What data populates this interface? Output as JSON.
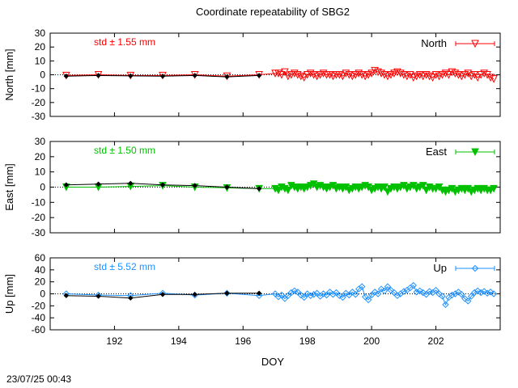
{
  "title": "Coordinate repeatability of SBG2",
  "footer": "23/07/25 00:43",
  "xlabel": "DOY",
  "xlim": [
    190.0,
    204.0
  ],
  "xticks": [
    192,
    194,
    196,
    198,
    200,
    202
  ],
  "colors": {
    "north": "#ff0000",
    "east": "#00c000",
    "up": "#1e90ff",
    "mean": "#000000"
  },
  "chart_data": [
    {
      "type": "line",
      "ylabel": "North [mm]",
      "ylim": [
        -30,
        30
      ],
      "yticks": [
        -30,
        -20,
        -10,
        0,
        10,
        20,
        30
      ],
      "std_label": "std ± 1.55 mm",
      "series": [
        {
          "name": "North",
          "marker": "triangle-down-open",
          "x": [
            190.5,
            191.5,
            192.5,
            193.5,
            194.5,
            195.5,
            196.5,
            197.0,
            197.1,
            197.2,
            197.3,
            197.4,
            197.5,
            197.6,
            197.7,
            197.8,
            197.9,
            198.0,
            198.1,
            198.2,
            198.3,
            198.4,
            198.5,
            198.6,
            198.7,
            198.8,
            198.9,
            199.0,
            199.1,
            199.2,
            199.3,
            199.4,
            199.5,
            199.6,
            199.7,
            199.8,
            199.9,
            200.0,
            200.1,
            200.2,
            200.3,
            200.4,
            200.5,
            200.6,
            200.7,
            200.8,
            200.9,
            201.0,
            201.1,
            201.2,
            201.3,
            201.4,
            201.5,
            201.6,
            201.7,
            201.8,
            201.9,
            202.0,
            202.1,
            202.2,
            202.3,
            202.4,
            202.5,
            202.6,
            202.7,
            202.8,
            202.9,
            203.0,
            203.1,
            203.2,
            203.3,
            203.4,
            203.5,
            203.6,
            203.7,
            203.8
          ],
          "y": [
            -0.5,
            0,
            -0.5,
            -0.5,
            0,
            -1,
            0,
            1,
            1,
            0,
            2,
            -1,
            0,
            1,
            0,
            -1,
            -2,
            0,
            1,
            0,
            -1,
            0,
            1,
            0,
            0,
            -1,
            0,
            0,
            -1,
            1,
            0,
            -1,
            0,
            1,
            0,
            -1,
            0,
            1,
            3,
            2,
            1,
            0,
            -1,
            0,
            1,
            2,
            1,
            0,
            -1,
            0,
            -2,
            -1,
            0,
            -1,
            0,
            -1,
            -2,
            0,
            -1,
            0,
            1,
            0,
            2,
            1,
            0,
            -1,
            0,
            1,
            -1,
            0,
            -2,
            0,
            1,
            0,
            -2,
            -3
          ]
        },
        {
          "name": "",
          "marker": "diamond",
          "x": [
            190.5,
            191.5,
            192.5,
            193.5,
            194.5,
            195.5,
            196.5
          ],
          "y": [
            -1,
            -0.5,
            -0.8,
            -1,
            -0.5,
            -1.5,
            -0.5
          ]
        }
      ]
    },
    {
      "type": "line",
      "ylabel": "East [mm]",
      "ylim": [
        -30,
        30
      ],
      "yticks": [
        -30,
        -20,
        -10,
        0,
        10,
        20,
        30
      ],
      "std_label": "std ± 1.50 mm",
      "series": [
        {
          "name": "East",
          "marker": "triangle-down-filled",
          "x": [
            190.5,
            191.5,
            192.5,
            193.5,
            194.5,
            195.5,
            196.5,
            197.0,
            197.1,
            197.2,
            197.3,
            197.4,
            197.5,
            197.6,
            197.7,
            197.8,
            197.9,
            198.0,
            198.1,
            198.2,
            198.3,
            198.4,
            198.5,
            198.6,
            198.7,
            198.8,
            198.9,
            199.0,
            199.1,
            199.2,
            199.3,
            199.4,
            199.5,
            199.6,
            199.7,
            199.8,
            199.9,
            200.0,
            200.1,
            200.2,
            200.3,
            200.4,
            200.5,
            200.6,
            200.7,
            200.8,
            200.9,
            201.0,
            201.1,
            201.2,
            201.3,
            201.4,
            201.5,
            201.6,
            201.7,
            201.8,
            201.9,
            202.0,
            202.1,
            202.2,
            202.3,
            202.4,
            202.5,
            202.6,
            202.7,
            202.8,
            202.9,
            203.0,
            203.1,
            203.2,
            203.3,
            203.4,
            203.5,
            203.6,
            203.7,
            203.8
          ],
          "y": [
            0,
            0,
            0.5,
            1,
            0,
            -0.5,
            -1,
            -1,
            -2,
            0,
            -1,
            -2,
            1,
            0,
            -1,
            0,
            -1,
            0,
            1,
            2,
            0,
            1,
            0,
            -1,
            0,
            1,
            -1,
            0,
            -1,
            0,
            -2,
            -1,
            0,
            -1,
            0,
            1,
            0,
            -2,
            -1,
            0,
            -1,
            0,
            -3,
            -1,
            0,
            -1,
            0,
            1,
            -1,
            0,
            1,
            -1,
            0,
            1,
            -2,
            0,
            -1,
            -1,
            0,
            -2,
            -3,
            -2,
            -1,
            -3,
            -2,
            -1,
            -2,
            -1,
            -3,
            -2,
            -1,
            -2,
            -1,
            -2,
            -2,
            -1
          ]
        },
        {
          "name": "",
          "marker": "diamond",
          "x": [
            190.5,
            191.5,
            192.5,
            193.5,
            194.5,
            195.5,
            196.5
          ],
          "y": [
            1.5,
            2,
            2.5,
            1.5,
            1,
            0,
            -1
          ]
        }
      ]
    },
    {
      "type": "line",
      "ylabel": "Up [mm]",
      "ylim": [
        -60,
        60
      ],
      "yticks": [
        -60,
        -40,
        -20,
        0,
        20,
        40,
        60
      ],
      "std_label": "std ± 5.52 mm",
      "series": [
        {
          "name": "Up",
          "marker": "diamond-open",
          "x": [
            190.5,
            191.5,
            192.5,
            193.5,
            194.5,
            195.5,
            196.5,
            197.0,
            197.1,
            197.2,
            197.3,
            197.4,
            197.5,
            197.6,
            197.7,
            197.8,
            197.9,
            198.0,
            198.1,
            198.2,
            198.3,
            198.4,
            198.5,
            198.6,
            198.7,
            198.8,
            198.9,
            199.0,
            199.1,
            199.2,
            199.3,
            199.4,
            199.5,
            199.6,
            199.7,
            199.8,
            199.9,
            200.0,
            200.1,
            200.2,
            200.3,
            200.4,
            200.5,
            200.6,
            200.7,
            200.8,
            200.9,
            201.0,
            201.1,
            201.2,
            201.3,
            201.4,
            201.5,
            201.6,
            201.7,
            201.8,
            201.9,
            202.0,
            202.1,
            202.2,
            202.3,
            202.4,
            202.5,
            202.6,
            202.7,
            202.8,
            202.9,
            203.0,
            203.1,
            203.2,
            203.3,
            203.4,
            203.5,
            203.6,
            203.7,
            203.8
          ],
          "y": [
            0,
            -2,
            -3,
            1,
            -2,
            1,
            -3,
            0,
            -5,
            -2,
            -8,
            -3,
            2,
            5,
            3,
            -2,
            -6,
            0,
            -3,
            -1,
            1,
            -4,
            0,
            -2,
            3,
            -1,
            2,
            -3,
            -6,
            1,
            -2,
            3,
            -1,
            8,
            12,
            -5,
            -10,
            -2,
            3,
            0,
            8,
            5,
            12,
            6,
            2,
            -3,
            0,
            4,
            6,
            10,
            14,
            3,
            5,
            2,
            -1,
            4,
            2,
            6,
            0,
            -4,
            -18,
            -6,
            -2,
            0,
            3,
            -1,
            -8,
            -12,
            -4,
            2,
            5,
            2,
            4,
            1,
            3,
            0
          ]
        },
        {
          "name": "",
          "marker": "diamond",
          "x": [
            190.5,
            191.5,
            192.5,
            193.5,
            194.5,
            195.5,
            196.5
          ],
          "y": [
            -3,
            -4,
            -7,
            -1,
            -1,
            1,
            1
          ]
        }
      ]
    }
  ]
}
